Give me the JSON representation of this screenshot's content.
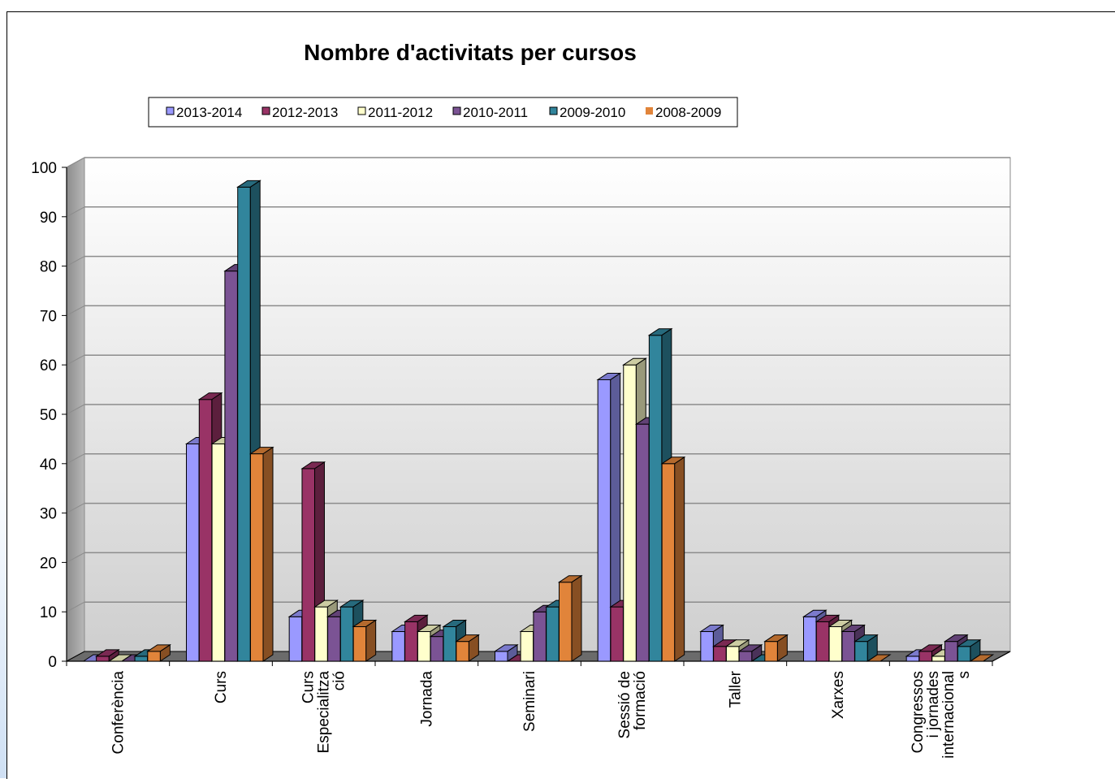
{
  "chart_data": {
    "type": "bar",
    "title": "Nombre d'activitats per cursos",
    "categories": [
      [
        "Conferència"
      ],
      [
        "Curs"
      ],
      [
        "Curs",
        "Especialitza",
        "ció"
      ],
      [
        "Jornada"
      ],
      [
        "Seminari"
      ],
      [
        "Sessió de",
        "formació"
      ],
      [
        "Taller"
      ],
      [
        "Xarxes"
      ],
      [
        "Congressos",
        "i jornades",
        "internacional",
        "s"
      ]
    ],
    "series": [
      {
        "name": "2013-2014",
        "color": "#9a99ff",
        "values": [
          0,
          44,
          9,
          6,
          2,
          57,
          6,
          9,
          1
        ]
      },
      {
        "name": "2012-2013",
        "color": "#993366",
        "values": [
          1,
          53,
          39,
          8,
          0,
          11,
          3,
          8,
          2
        ]
      },
      {
        "name": "2011-2012",
        "color": "#ffffcc",
        "values": [
          0,
          44,
          11,
          6,
          6,
          60,
          3,
          7,
          1
        ]
      },
      {
        "name": "2010-2011",
        "color": "#7b5394",
        "values": [
          0,
          79,
          9,
          5,
          10,
          48,
          2,
          6,
          4
        ]
      },
      {
        "name": "2009-2010",
        "color": "#31859c",
        "values": [
          1,
          96,
          11,
          7,
          11,
          66,
          0,
          4,
          3
        ]
      },
      {
        "name": "2008-2009",
        "color": "#e1843a",
        "values": [
          2,
          42,
          7,
          4,
          16,
          40,
          4,
          0,
          0
        ]
      }
    ],
    "ylim": [
      0,
      100
    ],
    "yticks": [
      0,
      10,
      20,
      30,
      40,
      50,
      60,
      70,
      80,
      90,
      100
    ],
    "grid": true,
    "legend": "top"
  }
}
